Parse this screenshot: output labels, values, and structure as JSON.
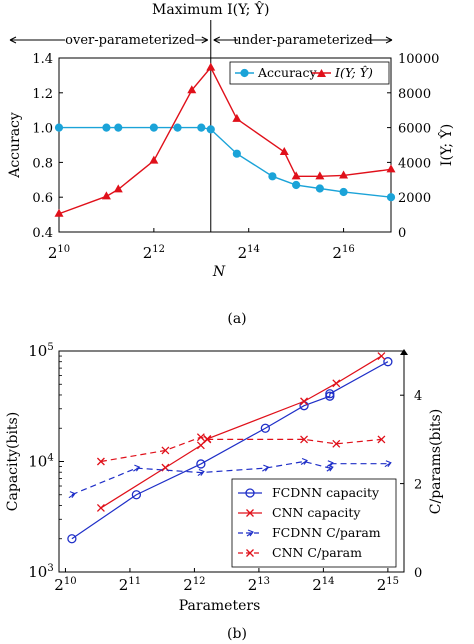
{
  "charts": [
    {
      "panel_label": "(a)",
      "chart_data": {
        "type": "line",
        "xlabel": "N",
        "ylabel": "Accuracy",
        "y2label": "I(Y; Ŷ)",
        "xscale": "log2",
        "xlim_log2": [
          10,
          17
        ],
        "ylim": [
          0.4,
          1.4
        ],
        "y2lim": [
          0,
          10000
        ],
        "x_tick_labels": [
          "2^10",
          "2^12",
          "2^14",
          "2^16"
        ],
        "x_ticks_log2": [
          10,
          12,
          14,
          16
        ],
        "y_tick_labels": [
          "0.4",
          "0.6",
          "0.8",
          "1.0",
          "1.2",
          "1.4"
        ],
        "y_ticks": [
          0.4,
          0.6,
          0.8,
          1.0,
          1.2,
          1.4
        ],
        "y2_tick_labels": [
          "0",
          "2000",
          "4000",
          "6000",
          "8000",
          "10000"
        ],
        "y2_ticks": [
          0,
          2000,
          4000,
          6000,
          8000,
          10000
        ],
        "annotations": {
          "vline_label": "Maximum I(Y; Ŷ)",
          "vline_x_log2": 13.2,
          "left_region": "over-parameterized",
          "right_region": "under-parameterized"
        },
        "legend": "top-right",
        "series": [
          {
            "name": "Accuracy",
            "axis": "left",
            "color": "#1ba3d8",
            "marker": "circle",
            "x_log2": [
              10,
              11,
              11.25,
              12,
              12.5,
              13,
              13.2,
              13.75,
              14.5,
              15,
              15.5,
              16,
              17
            ],
            "values": [
              1.0,
              1.0,
              1.0,
              1.0,
              1.0,
              1.0,
              0.99,
              0.85,
              0.72,
              0.67,
              0.65,
              0.63,
              0.6
            ]
          },
          {
            "name": "I(Y; Ŷ)",
            "axis": "right",
            "color": "#e0101a",
            "marker": "triangle",
            "x_log2": [
              10,
              11,
              11.25,
              12,
              12.8,
              13.2,
              13.75,
              14.75,
              15,
              15.5,
              16,
              17
            ],
            "values": [
              1050,
              2050,
              2450,
              4100,
              8150,
              9450,
              6500,
              4600,
              3200,
              3200,
              3250,
              3600
            ]
          }
        ]
      }
    },
    {
      "panel_label": "(b)",
      "chart_data": {
        "type": "line",
        "xlabel": "Parameters",
        "ylabel": "Capacity(bits)",
        "y2label": "C/params(bits)",
        "xscale": "log2",
        "xlim_log2": [
          9.9,
          15.25
        ],
        "yscale": "log10",
        "ylim_log10": [
          3,
          5
        ],
        "y2lim": [
          0,
          5
        ],
        "x_tick_labels": [
          "2^10",
          "2^11",
          "2^12",
          "2^13",
          "2^14",
          "2^15"
        ],
        "x_ticks_log2": [
          10,
          11,
          12,
          13,
          14,
          15
        ],
        "y_tick_labels": [
          "10^3",
          "10^4",
          "10^5"
        ],
        "y_ticks_log10": [
          3,
          4,
          5
        ],
        "y2_tick_labels": [
          "0",
          "2",
          "4"
        ],
        "y2_ticks": [
          0,
          2,
          4
        ],
        "legend": "bottom-right",
        "series": [
          {
            "name": "FCDNN capacity",
            "axis": "left",
            "color": "#1f2fc8",
            "marker": "circle",
            "style": "solid",
            "x_log2": [
              10.1,
              11.1,
              12.1,
              13.1,
              13.7,
              14.1,
              14.1,
              15
            ],
            "values": [
              2000,
              5000,
              9500,
              20000,
              32000,
              39000,
              41000,
              80000
            ]
          },
          {
            "name": "CNN capacity",
            "axis": "left",
            "color": "#e0101a",
            "marker": "x",
            "style": "solid",
            "x_log2": [
              10.55,
              11.55,
              12.1,
              12.2,
              13.7,
              14.2,
              14.9
            ],
            "values": [
              3800,
              8800,
              14000,
              16000,
              35000,
              51000,
              90000
            ]
          },
          {
            "name": "FCDNN C/param",
            "axis": "right",
            "color": "#1f2fc8",
            "marker": "arrow",
            "style": "dashed",
            "x_log2": [
              10.1,
              11.1,
              12.1,
              13.1,
              13.7,
              14.1,
              14.1,
              15
            ],
            "values": [
              1.75,
              2.35,
              2.25,
              2.35,
              2.5,
              2.35,
              2.45,
              2.45
            ]
          },
          {
            "name": "CNN C/param",
            "axis": "right",
            "color": "#e0101a",
            "marker": "x",
            "style": "dashed",
            "x_log2": [
              10.55,
              11.55,
              12.1,
              12.2,
              13.7,
              14.2,
              14.9
            ],
            "values": [
              2.5,
              2.75,
              3.05,
              3.0,
              3.0,
              2.9,
              3.0
            ]
          }
        ]
      }
    }
  ]
}
